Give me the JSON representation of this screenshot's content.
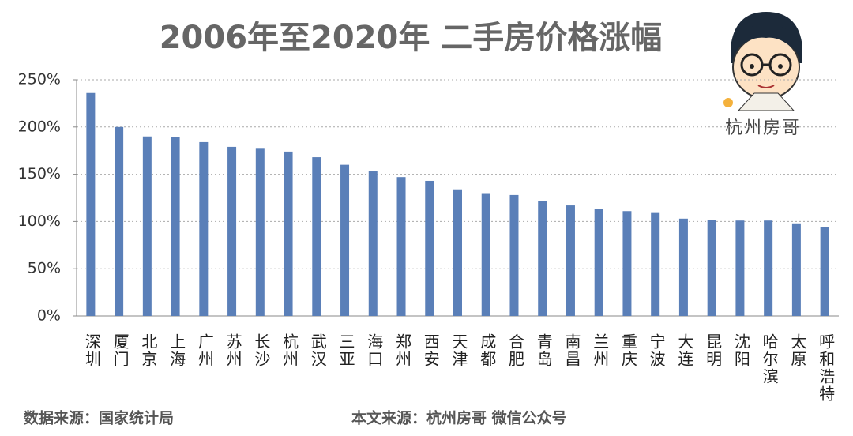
{
  "chart_data": {
    "type": "bar",
    "title": "2006年至2020年 二手房价格涨幅",
    "categories": [
      "深圳",
      "厦门",
      "北京",
      "上海",
      "广州",
      "苏州",
      "长沙",
      "杭州",
      "武汉",
      "三亚",
      "海口",
      "郑州",
      "西安",
      "天津",
      "成都",
      "合肥",
      "青岛",
      "南昌",
      "兰州",
      "重庆",
      "宁波",
      "大连",
      "昆明",
      "沈阳",
      "哈尔滨",
      "太原",
      "呼和浩特"
    ],
    "values": [
      236,
      200,
      190,
      189,
      184,
      179,
      177,
      174,
      168,
      160,
      153,
      147,
      143,
      134,
      130,
      128,
      122,
      117,
      113,
      111,
      109,
      103,
      102,
      101,
      101,
      98,
      94
    ],
    "color": "#5a7fb8",
    "ylim": [
      0,
      250
    ],
    "yticks": [
      {
        "value": 0,
        "label": "0%"
      },
      {
        "value": 50,
        "label": "50%"
      },
      {
        "value": 100,
        "label": "100%"
      },
      {
        "value": 150,
        "label": "150%"
      },
      {
        "value": 200,
        "label": "200%"
      },
      {
        "value": 250,
        "label": "250%"
      }
    ],
    "grid": true,
    "annotations": [
      "杭州房哥"
    ],
    "footer_left": "数据来源：国家统计局",
    "footer_right": "本文来源：杭州房哥 微信公众号"
  }
}
